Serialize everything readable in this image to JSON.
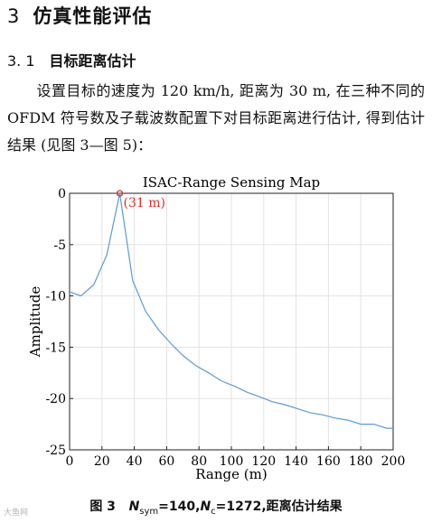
{
  "section": {
    "number": "3",
    "title": "仿真性能评估"
  },
  "subsection": {
    "number": "3. 1",
    "title": "目标距离估计"
  },
  "paragraph": "设置目标的速度为 120 km/h, 距离为 30 m, 在三种不同的 OFDM 符号数及子载波数配置下对目标距离进行估计, 得到估计结果 (见图 3—图 5)：",
  "chart_data": {
    "type": "line",
    "title": "ISAC-Range Sensing Map",
    "xlabel": "Range (m)",
    "ylabel": "Amplitude",
    "xlim": [
      0,
      200
    ],
    "ylim": [
      -25,
      0
    ],
    "xticks": [
      0,
      20,
      40,
      60,
      80,
      100,
      120,
      140,
      160,
      180,
      200
    ],
    "yticks": [
      0,
      -5,
      -10,
      -15,
      -20,
      -25
    ],
    "grid": true,
    "line_color": "#5b9bd5",
    "series": [
      {
        "x": [
          0,
          7,
          15,
          23,
          31,
          39,
          47,
          55,
          63,
          70,
          78,
          86,
          94,
          102,
          110,
          117,
          125,
          133,
          141,
          149,
          157,
          164,
          172,
          180,
          188,
          196,
          200
        ],
        "y": [
          -9.6,
          -10.0,
          -8.9,
          -6.0,
          0,
          -8.5,
          -11.5,
          -13.3,
          -14.7,
          -15.8,
          -16.8,
          -17.5,
          -18.3,
          -18.8,
          -19.4,
          -19.8,
          -20.3,
          -20.6,
          -21.0,
          -21.4,
          -21.6,
          -21.9,
          -22.1,
          -22.5,
          -22.5,
          -22.9,
          -22.9
        ]
      }
    ],
    "annotation": {
      "x": 31,
      "y": 0,
      "text": "(31 m)",
      "color": "#d9302c"
    }
  },
  "caption": {
    "prefix": "图 3",
    "n_sym_label": "N",
    "n_sym_sub": "sym",
    "n_sym_value": "=140,",
    "n_c_label": "N",
    "n_c_sub": "c",
    "n_c_value": "=1272,",
    "suffix": "距离估计结果"
  },
  "watermark": "大鱼网"
}
